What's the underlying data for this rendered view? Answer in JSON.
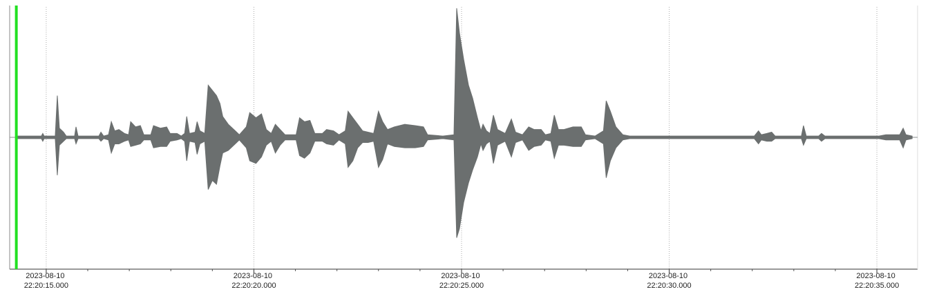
{
  "chart_data": {
    "type": "waveform",
    "x": [
      14.3,
      14.883,
      14.917,
      14.95,
      15.217,
      15.267,
      15.317,
      15.417,
      15.483,
      15.683,
      15.717,
      15.767,
      16.267,
      16.317,
      16.383,
      16.5,
      16.567,
      16.65,
      16.75,
      16.883,
      16.983,
      17.033,
      17.15,
      17.267,
      17.35,
      17.517,
      17.583,
      17.75,
      17.9,
      17.983,
      18.15,
      18.25,
      18.333,
      18.383,
      18.45,
      18.583,
      18.633,
      18.7,
      18.817,
      18.9,
      19.0,
      19.1,
      19.183,
      19.25,
      19.383,
      19.55,
      19.65,
      19.817,
      19.9,
      20.05,
      20.183,
      20.3,
      20.417,
      20.517,
      20.633,
      20.75,
      21.017,
      21.1,
      21.217,
      21.35,
      21.467,
      21.65,
      21.75,
      21.917,
      22.05,
      22.2,
      22.267,
      22.383,
      22.5,
      22.617,
      22.75,
      22.883,
      23.0,
      23.1,
      23.217,
      23.383,
      23.633,
      23.883,
      24.083,
      24.183,
      24.55,
      24.817,
      24.883,
      24.95,
      25.05,
      25.167,
      25.267,
      25.383,
      25.467,
      25.517,
      25.6,
      25.683,
      25.767,
      25.867,
      26.05,
      26.2,
      26.3,
      26.467,
      26.617,
      26.75,
      26.917,
      27.017,
      27.15,
      27.233,
      27.333,
      27.467,
      27.683,
      27.883,
      27.983,
      28.217,
      28.417,
      28.483,
      28.583,
      28.717,
      28.883,
      29.05,
      32.05,
      32.15,
      32.217,
      32.35,
      32.467,
      32.55,
      33.183,
      33.233,
      33.3,
      33.6,
      33.667,
      33.75,
      35.05,
      35.217,
      35.55,
      35.633,
      35.7,
      35.85
    ],
    "series": [
      {
        "color": "#6b6f6f",
        "values": [
          0.01,
          0.01,
          0.03,
          0.01,
          0.01,
          0.32,
          0.07,
          0.04,
          0.01,
          0.01,
          0.08,
          0.01,
          0.01,
          0.04,
          0.01,
          0.02,
          0.12,
          0.05,
          0.06,
          0.03,
          0.02,
          0.12,
          0.08,
          0.09,
          0.02,
          0.02,
          0.09,
          0.07,
          0.08,
          0.03,
          0.03,
          0.01,
          0.03,
          0.16,
          0.03,
          0.04,
          0.12,
          0.05,
          0.03,
          0.4,
          0.36,
          0.32,
          0.26,
          0.16,
          0.1,
          0.05,
          0.02,
          0.08,
          0.19,
          0.15,
          0.18,
          0.06,
          0.03,
          0.1,
          0.06,
          0.02,
          0.02,
          0.15,
          0.12,
          0.13,
          0.03,
          0.03,
          0.06,
          0.05,
          0.02,
          0.05,
          0.2,
          0.15,
          0.1,
          0.05,
          0.04,
          0.03,
          0.2,
          0.12,
          0.06,
          0.08,
          0.1,
          0.09,
          0.08,
          0.02,
          0.01,
          0.02,
          0.99,
          0.8,
          0.6,
          0.4,
          0.3,
          0.15,
          0.05,
          0.1,
          0.05,
          0.03,
          0.17,
          0.06,
          0.03,
          0.14,
          0.04,
          0.02,
          0.08,
          0.06,
          0.06,
          0.02,
          0.03,
          0.17,
          0.06,
          0.06,
          0.08,
          0.08,
          0.02,
          0.01,
          0.05,
          0.28,
          0.2,
          0.08,
          0.02,
          0.01,
          0.01,
          0.05,
          0.02,
          0.03,
          0.04,
          0.01,
          0.01,
          0.09,
          0.01,
          0.01,
          0.03,
          0.01,
          0.01,
          0.02,
          0.02,
          0.07,
          0.02,
          0.01
        ]
      },
      {
        "color": "#6b6f6f",
        "values": [
          -0.01,
          -0.01,
          -0.03,
          -0.01,
          -0.01,
          -0.29,
          -0.06,
          -0.03,
          -0.01,
          -0.01,
          -0.05,
          -0.01,
          -0.01,
          -0.03,
          -0.01,
          -0.02,
          -0.12,
          -0.05,
          -0.05,
          -0.03,
          -0.02,
          -0.07,
          -0.06,
          -0.05,
          -0.02,
          -0.02,
          -0.08,
          -0.07,
          -0.07,
          -0.03,
          -0.02,
          -0.01,
          -0.03,
          -0.18,
          -0.03,
          -0.04,
          -0.13,
          -0.05,
          -0.03,
          -0.4,
          -0.33,
          -0.36,
          -0.22,
          -0.12,
          -0.1,
          -0.05,
          -0.02,
          -0.08,
          -0.18,
          -0.2,
          -0.15,
          -0.06,
          -0.03,
          -0.12,
          -0.06,
          -0.02,
          -0.02,
          -0.14,
          -0.16,
          -0.12,
          -0.03,
          -0.03,
          -0.05,
          -0.06,
          -0.02,
          -0.05,
          -0.23,
          -0.18,
          -0.08,
          -0.04,
          -0.04,
          -0.03,
          -0.23,
          -0.17,
          -0.05,
          -0.07,
          -0.08,
          -0.08,
          -0.07,
          -0.02,
          -0.01,
          -0.02,
          -0.77,
          -0.7,
          -0.5,
          -0.35,
          -0.25,
          -0.15,
          -0.05,
          -0.1,
          -0.05,
          -0.03,
          -0.2,
          -0.06,
          -0.03,
          -0.15,
          -0.04,
          -0.02,
          -0.1,
          -0.07,
          -0.06,
          -0.02,
          -0.03,
          -0.16,
          -0.06,
          -0.06,
          -0.07,
          -0.07,
          -0.02,
          -0.01,
          -0.05,
          -0.31,
          -0.18,
          -0.08,
          -0.02,
          -0.01,
          -0.01,
          -0.05,
          -0.02,
          -0.03,
          -0.03,
          -0.01,
          -0.01,
          -0.06,
          -0.01,
          -0.01,
          -0.03,
          -0.01,
          -0.01,
          -0.02,
          -0.02,
          -0.08,
          -0.02,
          -0.01
        ]
      }
    ],
    "xlim": [
      14.12,
      35.98
    ],
    "ylim": [
      -1,
      1
    ],
    "xticks": [
      {
        "value": 15,
        "label": "2023-08-10 22:20:15.000"
      },
      {
        "value": 20,
        "label": "2023-08-10 22:20:20.000"
      },
      {
        "value": 25,
        "label": "2023-08-10 22:20:25.000"
      },
      {
        "value": 30,
        "label": "2023-08-10 22:20:30.000"
      },
      {
        "value": 35,
        "label": "2023-08-10 22:20:35.000"
      }
    ],
    "xminorticks": [
      16,
      17,
      18,
      19,
      21,
      22,
      23,
      24,
      26,
      27,
      28,
      29,
      31,
      32,
      33,
      34
    ],
    "grid": true,
    "cursor_x": 14.28,
    "cursor_color": "#22e022"
  }
}
